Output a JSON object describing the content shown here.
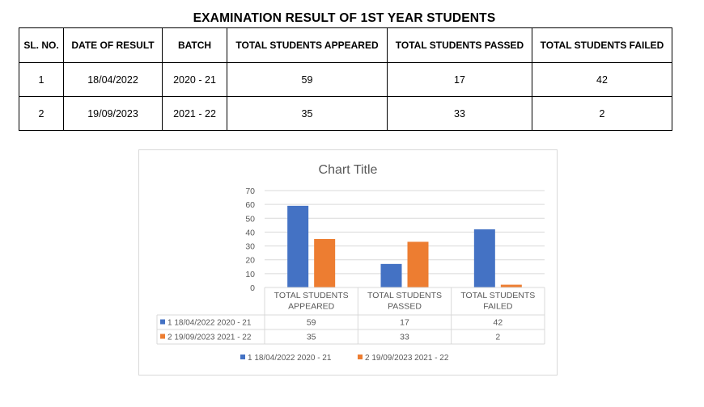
{
  "heading": "EXAMINATION RESULT OF 1ST YEAR STUDENTS",
  "table": {
    "headers": [
      "SL. NO.",
      "DATE OF RESULT",
      "BATCH",
      "TOTAL STUDENTS APPEARED",
      "TOTAL STUDENTS PASSED",
      "TOTAL STUDENTS FAILED"
    ],
    "rows": [
      [
        "1",
        "18/04/2022",
        "2020 - 21",
        "59",
        "17",
        "42"
      ],
      [
        "2",
        "19/09/2023",
        "2021 - 22",
        "35",
        "33",
        "2"
      ]
    ]
  },
  "chart_data": {
    "type": "bar",
    "title": "Chart Title",
    "categories": [
      [
        "TOTAL STUDENTS",
        "APPEARED"
      ],
      [
        "TOTAL STUDENTS",
        "PASSED"
      ],
      [
        "TOTAL STUDENTS",
        "FAILED"
      ]
    ],
    "series": [
      {
        "name": "1 18/04/2022 2020 - 21",
        "color": "#4472C4",
        "values": [
          59,
          17,
          42
        ]
      },
      {
        "name": "2 19/09/2023 2021 - 22",
        "color": "#ED7D31",
        "values": [
          35,
          33,
          2
        ]
      }
    ],
    "ylim": [
      0,
      70
    ],
    "yticks": [
      0,
      10,
      20,
      30,
      40,
      50,
      60,
      70
    ],
    "grid": true,
    "legend": "bottom",
    "data_table": true
  }
}
